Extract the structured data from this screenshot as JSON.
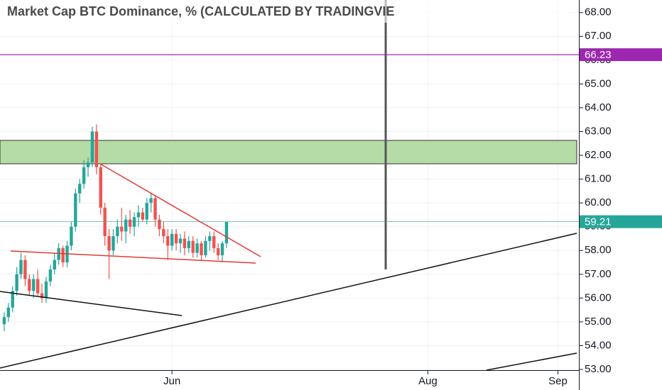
{
  "chart_data": {
    "type": "candlestick",
    "title": "Market Cap BTC Dominance, % (CALCULATED BY TRADINGVIE",
    "x": [
      -40,
      -39,
      -38,
      -37,
      -36,
      -35,
      -34,
      -33,
      -32,
      -31,
      -30,
      -29,
      -28,
      -27,
      -26,
      -25,
      -24,
      -23,
      -22,
      -21,
      -20,
      -19,
      -18,
      -17,
      -16,
      -15,
      -14,
      -13,
      -12,
      -11,
      -10,
      -9,
      -8,
      -7,
      -6,
      -5,
      -4,
      -3,
      -2,
      -1,
      0,
      1,
      2,
      3,
      4,
      5,
      6,
      7,
      8,
      9,
      10,
      11,
      12,
      13
    ],
    "open": [
      54.9,
      55.2,
      55.6,
      56.3,
      57.0,
      57.6,
      56.8,
      56.3,
      56.8,
      56.2,
      56.0,
      56.7,
      57.2,
      57.6,
      58.1,
      57.5,
      58.2,
      59.0,
      60.4,
      60.8,
      61.5,
      61.7,
      63.0,
      61.5,
      59.8,
      58.6,
      58.0,
      58.6,
      59.0,
      58.8,
      59.3,
      59.0,
      59.4,
      59.6,
      59.3,
      60.0,
      60.2,
      59.3,
      58.9,
      58.6,
      58.2,
      58.7,
      58.3,
      58.5,
      58.1,
      58.4,
      57.9,
      58.3,
      57.8,
      58.4,
      58.6,
      58.1,
      57.8,
      58.3
    ],
    "high": [
      55.4,
      55.8,
      56.5,
      57.3,
      57.9,
      57.8,
      57.0,
      57.0,
      57.2,
      56.6,
      56.9,
      57.4,
      57.9,
      58.3,
      58.2,
      58.4,
      59.2,
      60.6,
      61.0,
      61.8,
      61.9,
      63.2,
      63.3,
      61.6,
      60.0,
      58.9,
      58.9,
      59.3,
      59.8,
      59.5,
      59.7,
      59.6,
      59.9,
      59.8,
      60.2,
      60.4,
      60.3,
      59.5,
      59.2,
      58.9,
      58.9,
      58.9,
      58.7,
      58.8,
      58.6,
      58.6,
      58.5,
      58.4,
      58.6,
      58.8,
      58.8,
      58.3,
      58.4,
      59.2
    ],
    "low": [
      54.6,
      55.0,
      55.4,
      56.1,
      56.8,
      56.5,
      56.1,
      56.0,
      56.1,
      55.8,
      55.8,
      56.5,
      57.0,
      57.4,
      57.3,
      57.3,
      58.0,
      58.8,
      60.0,
      60.6,
      61.1,
      61.5,
      61.2,
      59.5,
      58.2,
      56.8,
      57.8,
      58.3,
      58.4,
      58.3,
      58.7,
      58.6,
      59.0,
      59.2,
      59.1,
      59.6,
      59.0,
      58.6,
      58.3,
      57.6,
      58.0,
      58.0,
      57.9,
      57.8,
      57.9,
      57.7,
      57.7,
      57.6,
      57.7,
      58.0,
      57.9,
      57.6,
      57.5,
      58.1
    ],
    "close": [
      55.2,
      55.6,
      56.3,
      57.0,
      57.6,
      56.8,
      56.3,
      56.8,
      56.2,
      56.0,
      56.7,
      57.2,
      57.6,
      58.1,
      57.5,
      58.2,
      59.0,
      60.4,
      60.8,
      61.5,
      61.7,
      63.0,
      61.5,
      59.8,
      58.6,
      58.0,
      58.6,
      59.0,
      58.8,
      59.3,
      59.0,
      59.4,
      59.6,
      59.3,
      60.0,
      60.2,
      59.3,
      58.9,
      58.6,
      58.2,
      58.7,
      58.3,
      58.5,
      58.1,
      58.4,
      57.9,
      58.3,
      57.8,
      58.4,
      58.6,
      58.1,
      57.8,
      58.3,
      59.2
    ],
    "up_color": "#26a69a",
    "down_color": "#ef5350",
    "xlim": [
      -41,
      97
    ],
    "xticks": [
      {
        "value": 0,
        "label": "Jun"
      },
      {
        "value": 61,
        "label": "Aug"
      },
      {
        "value": 92,
        "label": "Sep"
      }
    ],
    "ylim": [
      52.97,
      68.26
    ],
    "yticks": [
      {
        "value": 53,
        "label": "53.00"
      },
      {
        "value": 54,
        "label": "54.00"
      },
      {
        "value": 55,
        "label": "55.00"
      },
      {
        "value": 56,
        "label": "56.00"
      },
      {
        "value": 57,
        "label": "57.00"
      },
      {
        "value": 58,
        "label": "58.00"
      },
      {
        "value": 59,
        "label": "59.00"
      },
      {
        "value": 60,
        "label": "60.00"
      },
      {
        "value": 61,
        "label": "61.00"
      },
      {
        "value": 62,
        "label": "62.00"
      },
      {
        "value": 63,
        "label": "63.00"
      },
      {
        "value": 64,
        "label": "64.00"
      },
      {
        "value": 65,
        "label": "65.00"
      },
      {
        "value": 66,
        "label": "66.00"
      },
      {
        "value": 67,
        "label": "67.00"
      },
      {
        "value": 68,
        "label": "68.00"
      }
    ],
    "price_lines": [
      {
        "value": 66.23,
        "color": "#9c27b0"
      },
      {
        "value": 59.21,
        "color": "#26a69a"
      }
    ],
    "grid": true
  }
}
